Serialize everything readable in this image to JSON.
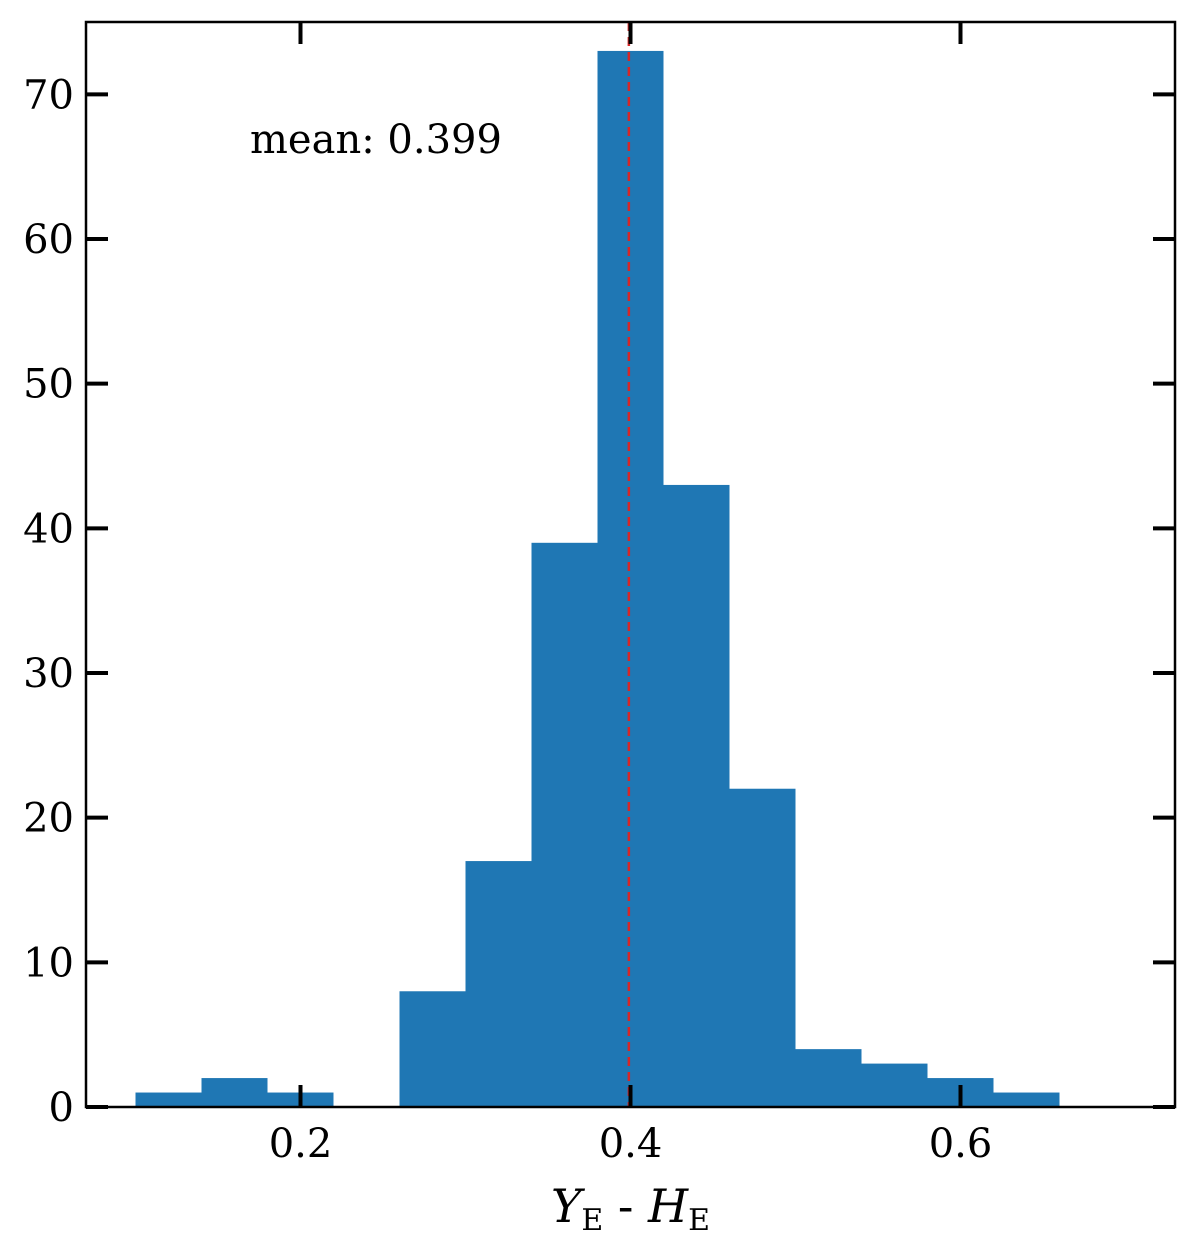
{
  "chart_data": {
    "type": "bar",
    "title": "",
    "xlabel": {
      "y": "Y",
      "y_sub": "E",
      "sep": " - ",
      "h": "H",
      "h_sub": "E"
    },
    "ylabel": "",
    "xlim": [
      0.07,
      0.73
    ],
    "ylim": [
      0,
      75
    ],
    "bin_edges": [
      0.1,
      0.14,
      0.18,
      0.22,
      0.26,
      0.3,
      0.34,
      0.38,
      0.42,
      0.46,
      0.5,
      0.54,
      0.58,
      0.62,
      0.66
    ],
    "counts": [
      1,
      2,
      1,
      0,
      8,
      17,
      39,
      73,
      43,
      22,
      4,
      3,
      2,
      1
    ],
    "xticks": [
      0.2,
      0.4,
      0.6
    ],
    "xtick_labels": [
      "0.2",
      "0.4",
      "0.6"
    ],
    "yticks": [
      0,
      10,
      20,
      30,
      40,
      50,
      60,
      70
    ],
    "ytick_labels": [
      "0",
      "10",
      "20",
      "30",
      "40",
      "50",
      "60",
      "70"
    ],
    "mean_line": {
      "x": 0.399,
      "color": "#d62728",
      "style": "dashed"
    },
    "annotation": "mean: 0.399",
    "bar_color": "#1f77b4",
    "grid": false,
    "legend": "none"
  }
}
